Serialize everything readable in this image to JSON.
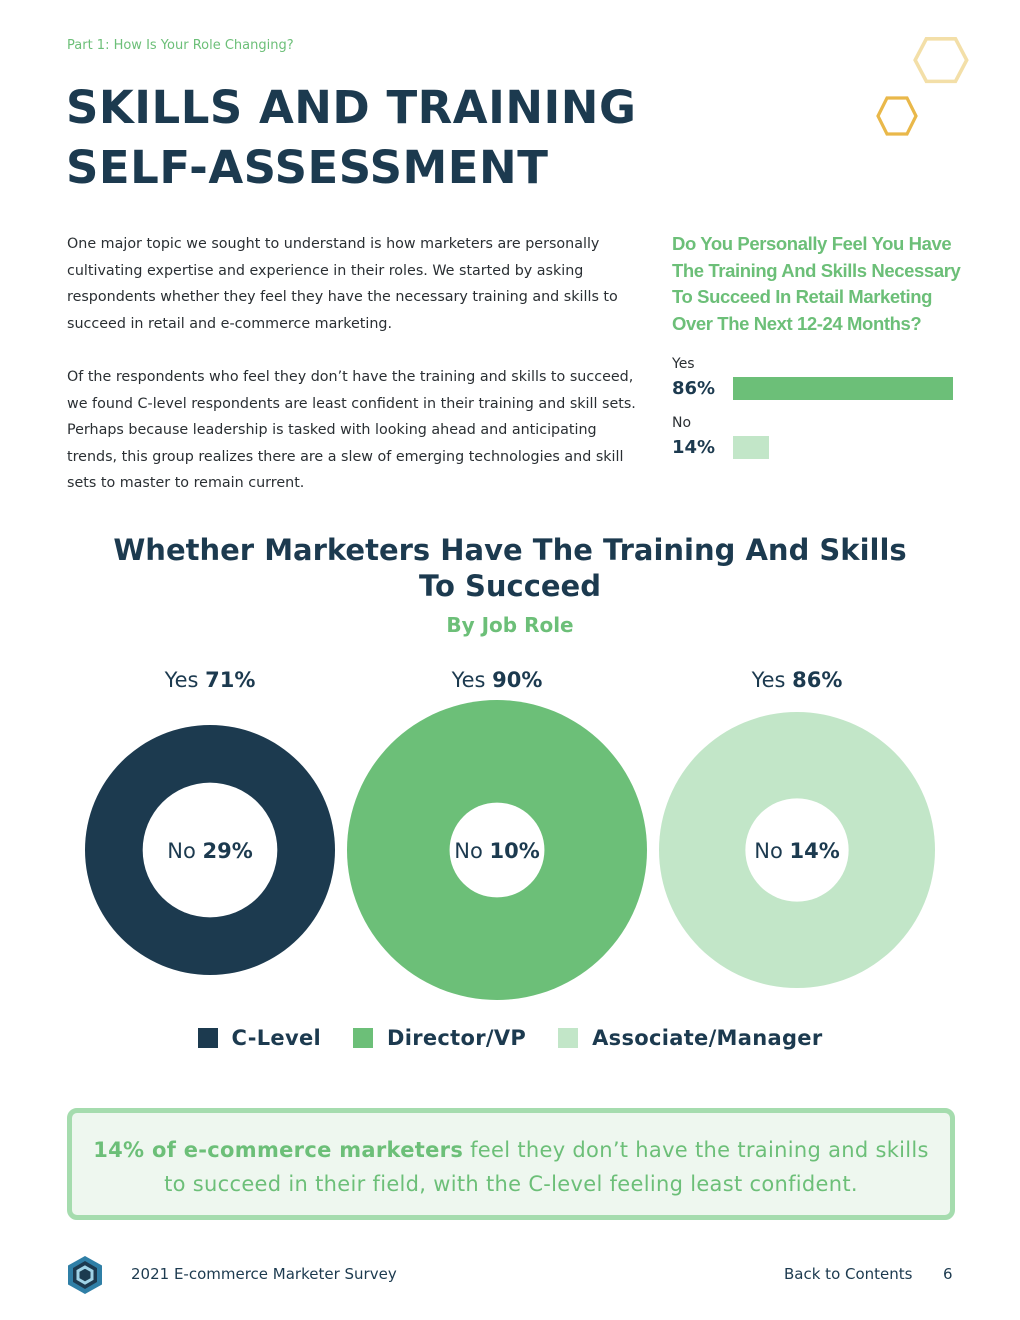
{
  "header": {
    "kicker": "Part 1: How Is Your Role Changing?",
    "title_line1": "SKILLS AND TRAINING",
    "title_line2": "SELF-ASSESSMENT"
  },
  "body": {
    "paragraph1": "One major topic we sought to understand is how marketers are personally cultivating expertise and experience in their roles. We started by asking respondents whether they feel they have the necessary training and skills to succeed in retail and e-commerce marketing.",
    "paragraph2": "Of the respondents who feel they don’t have the training and skills to succeed, we found C-level respondents are least confident in their training and skill sets. Perhaps because leadership is tasked with looking ahead and anticipating trends, this group realizes there are a slew of emerging technologies and skill sets to master to remain current."
  },
  "colors": {
    "navy": "#1c3a4f",
    "green": "#6cbf78",
    "light_green": "#c2e6c8",
    "hex_pale": "#f3dfa8",
    "hex_gold": "#e9b84a"
  },
  "chart_data": [
    {
      "type": "bar",
      "orientation": "horizontal",
      "title": "Do You Personally Feel You Have The Training And Skills Necessary To Succeed In Retail Marketing Over The Next 12-24 Months?",
      "categories": [
        "Yes",
        "No"
      ],
      "values": [
        86,
        14
      ],
      "value_labels": [
        "86%",
        "14%"
      ],
      "colors": [
        "#6cbf78",
        "#c2e6c8"
      ],
      "xlim": [
        0,
        86
      ]
    },
    {
      "type": "pie",
      "title": "Whether Marketers Have The Training And Skills To Succeed",
      "subtitle": "By Job Role",
      "legend": [
        "C-Level",
        "Director/VP",
        "Associate/Manager"
      ],
      "legend_position": "bottom",
      "series": [
        {
          "name": "C-Level",
          "yes": 71,
          "no": 29,
          "yes_label_word": "Yes",
          "yes_label_value": "71%",
          "no_label_word": "No",
          "no_label_value": "29%",
          "color": "#1c3a4f"
        },
        {
          "name": "Director/VP",
          "yes": 90,
          "no": 10,
          "yes_label_word": "Yes",
          "yes_label_value": "90%",
          "no_label_word": "No",
          "no_label_value": "10%",
          "color": "#6cbf78"
        },
        {
          "name": "Associate/Manager",
          "yes": 86,
          "no": 14,
          "yes_label_word": "Yes",
          "yes_label_value": "86%",
          "no_label_word": "No",
          "no_label_value": "14%",
          "color": "#c2e6c8"
        }
      ]
    }
  ],
  "callout": {
    "highlight": "14% of e-commerce marketers",
    "rest": " feel they don’t have the training and skills to succeed in their field, with the C-level feeling least confident."
  },
  "footer": {
    "title": "2021 E-commerce Marketer Survey",
    "back_link": "Back to Contents",
    "page_number": "6"
  }
}
